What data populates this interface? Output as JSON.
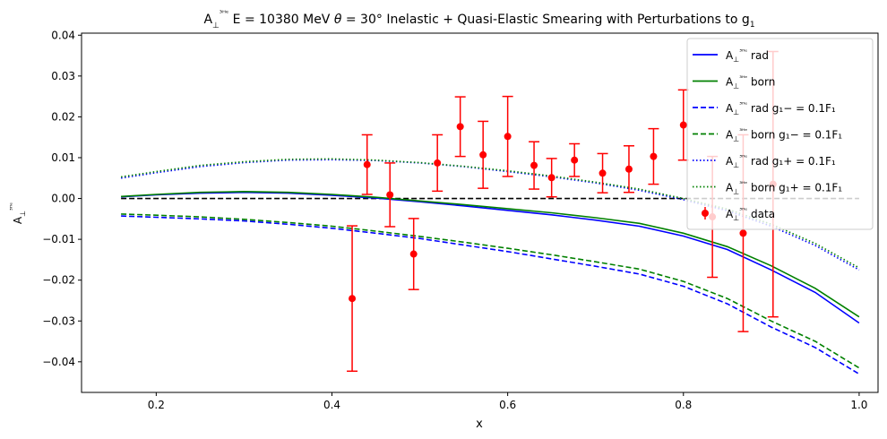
{
  "chart_data": {
    "type": "line",
    "title": "A⊥³ᴴᵉ E = 10380 MeV θ = 30° Inelastic + Quasi-Elastic Smearing with Perturbations to g₁",
    "xlabel": "x",
    "ylabel": "A⊥³ᴴᵉ",
    "xlim": [
      0.115,
      1.0215
    ],
    "ylim": [
      -0.0475,
      0.0405
    ],
    "xticks": [
      "0.2",
      "0.4",
      "0.6",
      "0.8",
      "1.0"
    ],
    "yticks": [
      "0.04",
      "0.03",
      "0.02",
      "0.01",
      "0.00",
      "−0.01",
      "−0.02",
      "−0.03",
      "−0.04"
    ],
    "xtick_values": [
      0.2,
      0.4,
      0.6,
      0.8,
      1.0
    ],
    "ytick_values": [
      0.04,
      0.03,
      0.02,
      0.01,
      0.0,
      -0.01,
      -0.02,
      -0.03,
      -0.04
    ],
    "grid": false,
    "legend_position": "upper-right",
    "x": [
      0.16,
      0.2,
      0.25,
      0.3,
      0.35,
      0.4,
      0.45,
      0.5,
      0.55,
      0.6,
      0.65,
      0.7,
      0.75,
      0.8,
      0.85,
      0.9,
      0.95,
      1.0
    ],
    "series": [
      {
        "name": "A⊥³ᴴᵉ rad",
        "color": "#0000ff",
        "style": "solid",
        "values": [
          0.0004,
          0.0009,
          0.0013,
          0.0015,
          0.0013,
          0.0008,
          0.0001,
          -0.0008,
          -0.0018,
          -0.0029,
          -0.004,
          -0.0053,
          -0.0068,
          -0.0092,
          -0.0125,
          -0.0175,
          -0.023,
          -0.0305
        ]
      },
      {
        "name": "A⊥³ᴴᵉ born",
        "color": "#008000",
        "style": "solid",
        "values": [
          0.0005,
          0.001,
          0.0015,
          0.0017,
          0.0015,
          0.001,
          0.0003,
          -0.0006,
          -0.0015,
          -0.0025,
          -0.0035,
          -0.0047,
          -0.0061,
          -0.0085,
          -0.0118,
          -0.0165,
          -0.022,
          -0.029
        ]
      },
      {
        "name": "A⊥³ᴴᵉ rad g₁− = 0.1F₁",
        "color": "#0000ff",
        "style": "dashed",
        "values": [
          -0.0043,
          -0.0046,
          -0.005,
          -0.0055,
          -0.0063,
          -0.0073,
          -0.0085,
          -0.0098,
          -0.0114,
          -0.013,
          -0.0148,
          -0.0166,
          -0.0185,
          -0.0215,
          -0.0258,
          -0.0315,
          -0.0365,
          -0.043
        ]
      },
      {
        "name": "A⊥³ᴴᵉ born g₁− = 0.1F₁",
        "color": "#008000",
        "style": "dashed",
        "values": [
          -0.0038,
          -0.0041,
          -0.0045,
          -0.0051,
          -0.0059,
          -0.0068,
          -0.008,
          -0.0093,
          -0.0107,
          -0.0122,
          -0.0138,
          -0.0155,
          -0.0173,
          -0.0203,
          -0.0245,
          -0.03,
          -0.035,
          -0.0415
        ]
      },
      {
        "name": "A⊥³ᴴᵉ rad g₁+ = 0.1F₁",
        "color": "#0000ff",
        "style": "dotted",
        "values": [
          0.005,
          0.0063,
          0.0078,
          0.0088,
          0.0094,
          0.0095,
          0.0093,
          0.0087,
          0.0078,
          0.0066,
          0.0053,
          0.0038,
          0.002,
          -0.0003,
          -0.003,
          -0.0068,
          -0.0115,
          -0.0175
        ]
      },
      {
        "name": "A⊥³ᴴᵉ born g₁+ = 0.1F₁",
        "color": "#008000",
        "style": "dotted",
        "values": [
          0.0053,
          0.0066,
          0.0081,
          0.009,
          0.0096,
          0.0097,
          0.0094,
          0.0088,
          0.0079,
          0.0068,
          0.0055,
          0.004,
          0.0023,
          0.0,
          -0.0026,
          -0.0063,
          -0.011,
          -0.017
        ]
      }
    ],
    "reference_line": {
      "y": 0.0,
      "x_range": [
        0.16,
        1.0
      ],
      "color": "#000000",
      "style": "dashed"
    },
    "data_points": {
      "name": "A⊥³ᴴᵉ data",
      "color": "#ff0000",
      "points": [
        {
          "x": 0.423,
          "y": -0.0245,
          "err": 0.0178
        },
        {
          "x": 0.44,
          "y": 0.0083,
          "err": 0.0073
        },
        {
          "x": 0.466,
          "y": 0.0009,
          "err": 0.0078
        },
        {
          "x": 0.493,
          "y": -0.0136,
          "err": 0.0087
        },
        {
          "x": 0.52,
          "y": 0.0087,
          "err": 0.0069
        },
        {
          "x": 0.546,
          "y": 0.0176,
          "err": 0.0073
        },
        {
          "x": 0.572,
          "y": 0.0107,
          "err": 0.0082
        },
        {
          "x": 0.6,
          "y": 0.0152,
          "err": 0.0098
        },
        {
          "x": 0.63,
          "y": 0.0081,
          "err": 0.0058
        },
        {
          "x": 0.65,
          "y": 0.0051,
          "err": 0.0047
        },
        {
          "x": 0.676,
          "y": 0.0094,
          "err": 0.004
        },
        {
          "x": 0.708,
          "y": 0.0062,
          "err": 0.0048
        },
        {
          "x": 0.738,
          "y": 0.0072,
          "err": 0.0057
        },
        {
          "x": 0.766,
          "y": 0.0103,
          "err": 0.0068
        },
        {
          "x": 0.8,
          "y": 0.018,
          "err": 0.0086
        },
        {
          "x": 0.833,
          "y": -0.0045,
          "err": 0.0148
        },
        {
          "x": 0.868,
          "y": -0.0085,
          "err": 0.0241
        },
        {
          "x": 0.902,
          "y": 0.0035,
          "err": 0.0325
        }
      ]
    }
  }
}
